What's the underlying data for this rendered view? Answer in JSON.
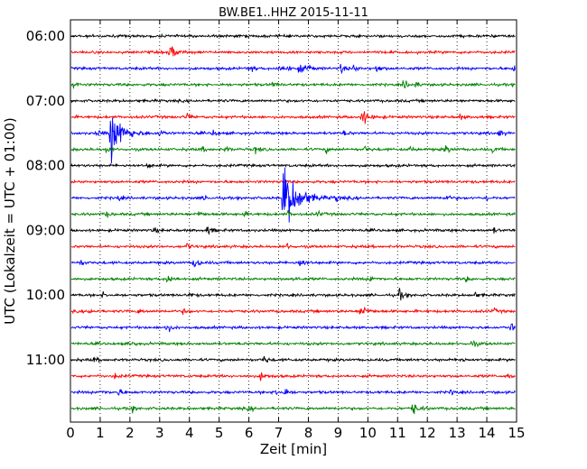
{
  "chart_data": {
    "type": "line",
    "title": "BW.BE1..HHZ 2015-11-11",
    "xlabel": "Zeit  [min]",
    "ylabel": "UTC (Lokalzeit = UTC + 01:00)",
    "xlim": [
      0,
      15
    ],
    "x_ticks": [
      "0",
      "1",
      "2",
      "3",
      "4",
      "5",
      "6",
      "7",
      "8",
      "9",
      "10",
      "11",
      "12",
      "13",
      "14",
      "15"
    ],
    "y_ticks": [
      {
        "label": "06:00",
        "trace": 0
      },
      {
        "label": "07:00",
        "trace": 4
      },
      {
        "label": "08:00",
        "trace": 8
      },
      {
        "label": "09:00",
        "trace": 12
      },
      {
        "label": "10:00",
        "trace": 16
      },
      {
        "label": "11:00",
        "trace": 20
      }
    ],
    "grid": "vertical dotted at each minute",
    "colors": [
      "#000000",
      "#ff0000",
      "#0000ff",
      "#008000"
    ],
    "traces": [
      {
        "start": "06:00",
        "color": "#000000",
        "events": []
      },
      {
        "start": "06:15",
        "color": "#ff0000",
        "events": [
          [
            3.35,
            10
          ]
        ]
      },
      {
        "start": "06:30",
        "color": "#0000ff",
        "events": [
          [
            6.0,
            4
          ],
          [
            7.0,
            4
          ],
          [
            7.3,
            4
          ],
          [
            7.7,
            6
          ],
          [
            8.0,
            4
          ],
          [
            9.1,
            5
          ],
          [
            9.5,
            4
          ],
          [
            10.3,
            5
          ],
          [
            14.9,
            4
          ]
        ]
      },
      {
        "start": "06:45",
        "color": "#008000",
        "events": [
          [
            0.1,
            4
          ],
          [
            6.8,
            3
          ],
          [
            11.2,
            5
          ],
          [
            11.6,
            3
          ]
        ]
      },
      {
        "start": "07:00",
        "color": "#000000",
        "events": []
      },
      {
        "start": "07:15",
        "color": "#ff0000",
        "events": [
          [
            3.9,
            4
          ],
          [
            9.8,
            10
          ],
          [
            13.1,
            3
          ]
        ]
      },
      {
        "start": "07:30",
        "color": "#0000ff",
        "events": [
          [
            0.9,
            4
          ],
          [
            1.35,
            30
          ],
          [
            3.0,
            4
          ],
          [
            4.8,
            4
          ],
          [
            9.2,
            3
          ],
          [
            14.4,
            4
          ]
        ]
      },
      {
        "start": "07:45",
        "color": "#008000",
        "events": [
          [
            1.2,
            4
          ],
          [
            4.4,
            3
          ],
          [
            5.2,
            3
          ],
          [
            6.2,
            4
          ],
          [
            8.6,
            3
          ],
          [
            9.9,
            3
          ],
          [
            11.4,
            3
          ],
          [
            12.6,
            5
          ],
          [
            14.2,
            3
          ]
        ]
      },
      {
        "start": "08:00",
        "color": "#000000",
        "events": [
          [
            2.6,
            3
          ]
        ]
      },
      {
        "start": "08:15",
        "color": "#ff0000",
        "events": []
      },
      {
        "start": "08:30",
        "color": "#0000ff",
        "events": [
          [
            1.6,
            3
          ],
          [
            4.5,
            3
          ],
          [
            7.15,
            40
          ],
          [
            8.9,
            4
          ],
          [
            12.6,
            4
          ],
          [
            14.0,
            3
          ]
        ]
      },
      {
        "start": "08:45",
        "color": "#008000",
        "events": [
          [
            1.2,
            3
          ],
          [
            4.3,
            3
          ],
          [
            5.8,
            3
          ],
          [
            7.3,
            3
          ],
          [
            8.3,
            3
          ]
        ]
      },
      {
        "start": "09:00",
        "color": "#000000",
        "events": [
          [
            2.8,
            3
          ],
          [
            4.6,
            5
          ],
          [
            14.2,
            3
          ]
        ]
      },
      {
        "start": "09:15",
        "color": "#ff0000",
        "events": [
          [
            3.9,
            4
          ],
          [
            7.3,
            3
          ]
        ]
      },
      {
        "start": "09:30",
        "color": "#0000ff",
        "events": [
          [
            0.3,
            4
          ],
          [
            4.15,
            7
          ],
          [
            7.7,
            7
          ]
        ]
      },
      {
        "start": "09:45",
        "color": "#008000",
        "events": [
          [
            3.25,
            7
          ],
          [
            7.5,
            4
          ],
          [
            10.1,
            4
          ],
          [
            13.3,
            3
          ]
        ]
      },
      {
        "start": "10:00",
        "color": "#000000",
        "events": [
          [
            1.1,
            3
          ],
          [
            4.0,
            3
          ],
          [
            11.05,
            6
          ],
          [
            13.6,
            3
          ]
        ]
      },
      {
        "start": "10:15",
        "color": "#ff0000",
        "events": [
          [
            0.6,
            3
          ],
          [
            2.3,
            3
          ],
          [
            3.8,
            3
          ],
          [
            9.75,
            9
          ],
          [
            14.2,
            3
          ]
        ]
      },
      {
        "start": "10:30",
        "color": "#0000ff",
        "events": [
          [
            3.2,
            6
          ],
          [
            14.8,
            5
          ]
        ]
      },
      {
        "start": "10:45",
        "color": "#008000",
        "events": [
          [
            2.0,
            4
          ],
          [
            13.5,
            4
          ]
        ]
      },
      {
        "start": "11:00",
        "color": "#000000",
        "events": [
          [
            0.8,
            3
          ],
          [
            6.5,
            5
          ],
          [
            13.1,
            3
          ]
        ]
      },
      {
        "start": "11:15",
        "color": "#ff0000",
        "events": [
          [
            1.5,
            3
          ],
          [
            6.4,
            5
          ],
          [
            14.7,
            3
          ]
        ]
      },
      {
        "start": "11:30",
        "color": "#0000ff",
        "events": [
          [
            1.0,
            3
          ],
          [
            1.6,
            4
          ],
          [
            6.9,
            4
          ],
          [
            7.2,
            5
          ],
          [
            12.8,
            3
          ]
        ]
      },
      {
        "start": "11:45",
        "color": "#008000",
        "events": [
          [
            2.1,
            3
          ],
          [
            6.0,
            3
          ],
          [
            11.5,
            8
          ]
        ]
      }
    ]
  }
}
